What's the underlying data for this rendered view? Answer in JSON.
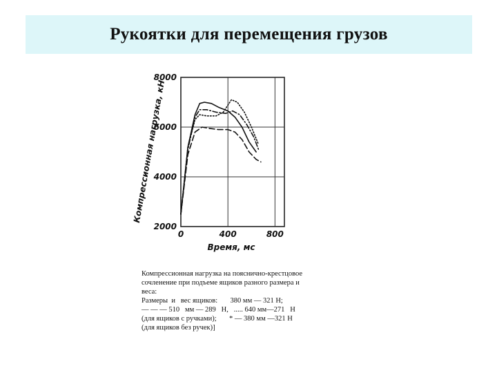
{
  "slide": {
    "title": "Рукоятки для перемещения грузов"
  },
  "caption": {
    "lines": [
      "Компрессионная нагрузка на поясничнo-крестцовое",
      "сочленение при подъеме ящиков разного размера и",
      "веса:",
      "Размеры  и   вес ящиков:       380 мм — 321 Н;",
      "— — — 510   мм — 289   Н,   ..... 640 мм—271   Н",
      "(для ящиков с ручками);       * — 380 мм —321 Н",
      "(для ящиков без ручек)]"
    ]
  },
  "chart_data": {
    "type": "line",
    "xlabel": "Время, мс",
    "ylabel": "Компрессионная нагрузка, кН",
    "xlim": [
      0,
      880
    ],
    "ylim": [
      2000,
      8000
    ],
    "xticks": [
      "0",
      "400",
      "800"
    ],
    "xtick_values": [
      0,
      400,
      800
    ],
    "yticks": [
      "2000",
      "4000",
      "6000",
      "8000"
    ],
    "ytick_values": [
      2000,
      4000,
      6000,
      8000
    ],
    "grid": true,
    "series": [
      {
        "style": "solid",
        "x": [
          0,
          60,
          120,
          160,
          200,
          260,
          320,
          400,
          460,
          520,
          580,
          640
        ],
        "y": [
          2500,
          5200,
          6500,
          6950,
          7000,
          6950,
          6800,
          6650,
          6400,
          6000,
          5400,
          5000
        ]
      },
      {
        "style": "dotted",
        "x": [
          0,
          60,
          120,
          160,
          220,
          300,
          360,
          430,
          480,
          540,
          600,
          660
        ],
        "y": [
          2500,
          5200,
          6300,
          6500,
          6450,
          6450,
          6600,
          7100,
          7000,
          6600,
          6000,
          5300
        ]
      },
      {
        "style": "dash-dot",
        "x": [
          0,
          60,
          120,
          160,
          220,
          300,
          380,
          440,
          500,
          560,
          620,
          660
        ],
        "y": [
          2500,
          5100,
          6400,
          6700,
          6700,
          6600,
          6550,
          6650,
          6500,
          6100,
          5600,
          5100
        ]
      },
      {
        "style": "long-dash",
        "x": [
          0,
          60,
          120,
          180,
          240,
          320,
          400,
          460,
          520,
          580,
          640,
          680
        ],
        "y": [
          2500,
          4900,
          5800,
          6000,
          5950,
          5900,
          5900,
          5800,
          5500,
          5000,
          4700,
          4600
        ]
      }
    ]
  }
}
